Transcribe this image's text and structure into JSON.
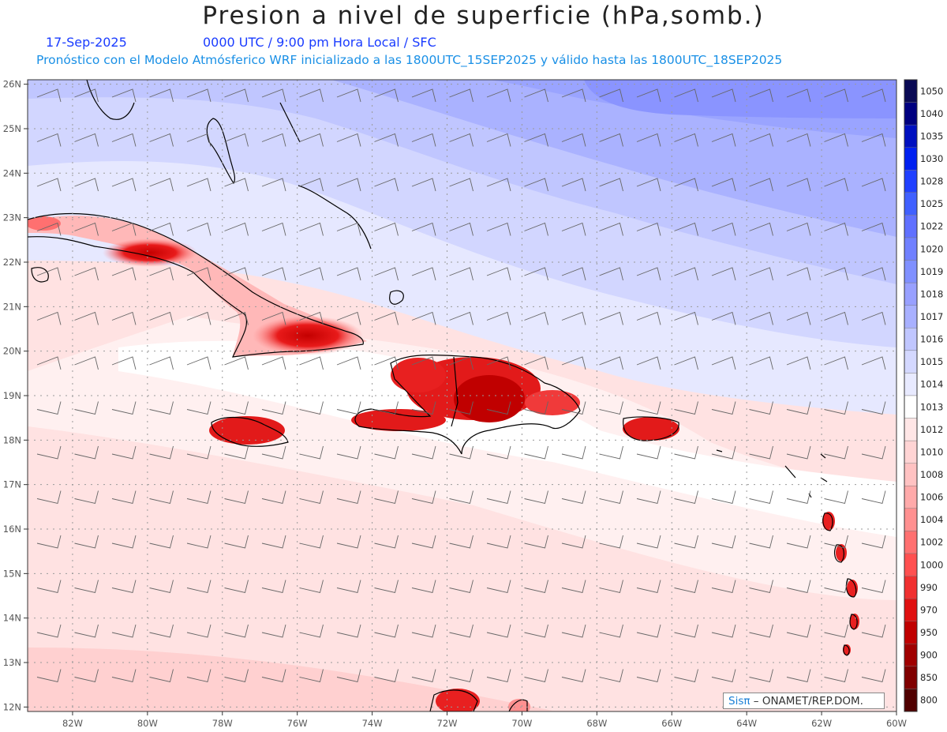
{
  "header": {
    "title": "Presion a nivel de superficie (hPa,somb.)",
    "date": "17-Sep-2025",
    "time_info": "0000 UTC / 9:00 pm Hora Local / SFC",
    "forecast_info": "Pronóstico con el Modelo Atmósferico WRF inicializado a las 1800UTC_15SEP2025 y válido hasta las  1800UTC_18SEP2025"
  },
  "map": {
    "lon_range": [
      -83.2,
      -60
    ],
    "lat_range": [
      11.9,
      26.1
    ],
    "lon_ticks": [
      "82W",
      "80W",
      "78W",
      "76W",
      "74W",
      "72W",
      "70W",
      "68W",
      "66W",
      "64W",
      "62W",
      "60W"
    ],
    "lat_ticks": [
      "12N",
      "13N",
      "14N",
      "15N",
      "16N",
      "17N",
      "18N",
      "19N",
      "20N",
      "21N",
      "22N",
      "23N",
      "24N",
      "25N",
      "26N"
    ]
  },
  "legend": {
    "levels": [
      "1050",
      "1040",
      "1035",
      "1030",
      "1028",
      "1025",
      "1022",
      "1020",
      "1019",
      "1018",
      "1017",
      "1016",
      "1015",
      "1014",
      "1013",
      "1012",
      "1010",
      "1008",
      "1006",
      "1004",
      "1002",
      "1000",
      "990",
      "970",
      "950",
      "900",
      "850",
      "800"
    ],
    "colors": [
      "#0a0a55",
      "#000080",
      "#0010c0",
      "#0020f0",
      "#2040ff",
      "#4060ff",
      "#6070ff",
      "#7080ff",
      "#8090ff",
      "#98a0ff",
      "#a8b0ff",
      "#c0c6ff",
      "#d4d8ff",
      "#e8eaff",
      "#ffffff",
      "#ffe6e6",
      "#ffd4d4",
      "#ffc2c2",
      "#ffaaaa",
      "#ff9090",
      "#ff7070",
      "#ff5050",
      "#f03030",
      "#e01010",
      "#c00000",
      "#a00000",
      "#800000",
      "#500000"
    ]
  },
  "credit": {
    "brand": "Sisπ",
    "text": " – ONAMET/REP.DOM."
  }
}
